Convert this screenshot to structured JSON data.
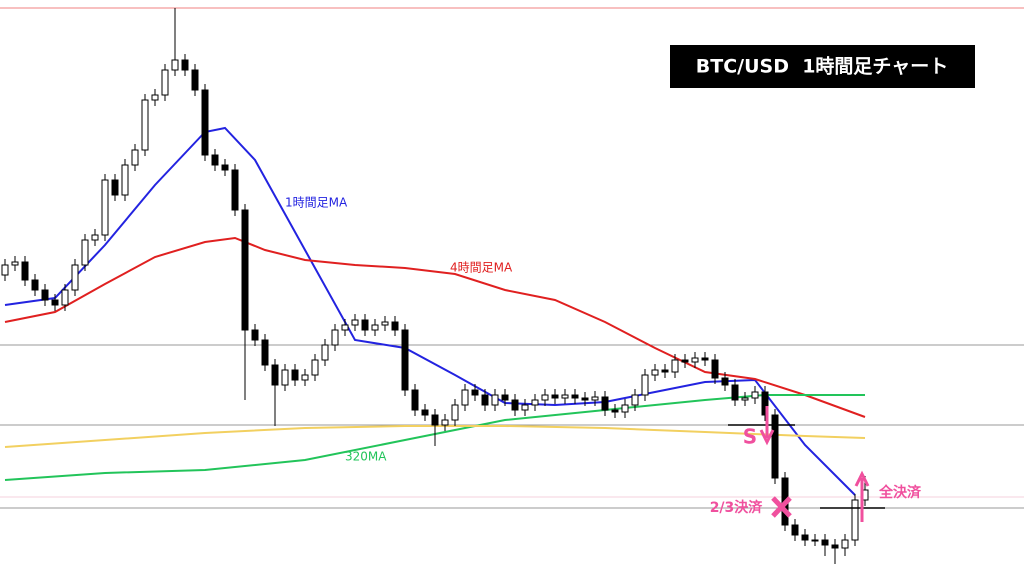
{
  "chart_data": {
    "type": "candlestick",
    "title": "BTC/USD  1時間足チャート",
    "ylim": [
      0,
      576
    ],
    "open": [
      301,
      311,
      314,
      296,
      286,
      276,
      271,
      286,
      311,
      336,
      341,
      396,
      381,
      411,
      426,
      476,
      481,
      506,
      516,
      506,
      486,
      421,
      411,
      406,
      366,
      246,
      236,
      211,
      191,
      206,
      196,
      201,
      216,
      231,
      246,
      251,
      256,
      246,
      251,
      254,
      246,
      186,
      166,
      161,
      151,
      156,
      171,
      186,
      181,
      171,
      181,
      176,
      166,
      171,
      176,
      181,
      178,
      181,
      178,
      176,
      179,
      166,
      164,
      171,
      181,
      201,
      206,
      204,
      216,
      214,
      218,
      216,
      198,
      191,
      176,
      178,
      184,
      161,
      98,
      51,
      41,
      36,
      36,
      31,
      28,
      36,
      76
    ],
    "high": [
      317,
      320,
      320,
      302,
      292,
      282,
      292,
      317,
      342,
      347,
      402,
      402,
      417,
      432,
      482,
      487,
      512,
      568,
      522,
      512,
      492,
      427,
      417,
      412,
      372,
      252,
      242,
      217,
      212,
      212,
      207,
      222,
      237,
      252,
      257,
      262,
      262,
      257,
      260,
      260,
      252,
      192,
      172,
      167,
      162,
      177,
      192,
      192,
      187,
      187,
      187,
      182,
      177,
      182,
      187,
      187,
      187,
      187,
      184,
      185,
      185,
      172,
      177,
      187,
      207,
      212,
      212,
      222,
      222,
      224,
      224,
      222,
      204,
      197,
      184,
      190,
      190,
      167,
      104,
      57,
      47,
      42,
      42,
      37,
      42,
      82,
      100
    ],
    "low": [
      295,
      305,
      290,
      280,
      270,
      265,
      265,
      280,
      305,
      330,
      335,
      375,
      375,
      405,
      420,
      470,
      475,
      500,
      500,
      480,
      415,
      405,
      400,
      360,
      176,
      230,
      205,
      150,
      185,
      190,
      190,
      195,
      210,
      225,
      240,
      245,
      240,
      240,
      245,
      240,
      180,
      160,
      155,
      130,
      145,
      150,
      165,
      175,
      165,
      165,
      170,
      160,
      160,
      165,
      170,
      172,
      172,
      172,
      170,
      170,
      160,
      158,
      158,
      165,
      175,
      195,
      198,
      198,
      208,
      208,
      210,
      192,
      185,
      170,
      170,
      172,
      155,
      92,
      45,
      35,
      30,
      30,
      20,
      12,
      20,
      30,
      70
    ],
    "close": [
      311,
      314,
      296,
      286,
      276,
      271,
      286,
      311,
      336,
      341,
      396,
      381,
      411,
      426,
      476,
      481,
      506,
      516,
      506,
      486,
      421,
      411,
      406,
      366,
      246,
      236,
      211,
      191,
      206,
      196,
      201,
      216,
      231,
      246,
      251,
      256,
      246,
      251,
      254,
      246,
      186,
      166,
      161,
      151,
      156,
      171,
      186,
      181,
      171,
      181,
      176,
      166,
      171,
      176,
      181,
      178,
      181,
      178,
      176,
      179,
      166,
      164,
      171,
      181,
      201,
      206,
      204,
      216,
      214,
      218,
      216,
      198,
      191,
      176,
      178,
      184,
      161,
      98,
      51,
      41,
      36,
      36,
      31,
      28,
      36,
      76,
      86
    ],
    "lines": [
      {
        "name": "1時間足MA",
        "color": "#2323e0",
        "x": [
          0,
          5,
          10,
          15,
          20,
          22,
          25,
          30,
          35,
          40,
          45,
          50,
          55,
          60,
          65,
          70,
          75,
          80,
          85
        ],
        "values": [
          271,
          278,
          331,
          391,
          444,
          448,
          416,
          326,
          236,
          228,
          201,
          173,
          171,
          174,
          184,
          194,
          196,
          131,
          81
        ]
      },
      {
        "name": "4時間足MA",
        "color": "#e02020",
        "x": [
          0,
          5,
          10,
          15,
          20,
          23,
          26,
          30,
          35,
          40,
          45,
          50,
          55,
          60,
          65,
          70,
          75,
          80,
          86
        ],
        "values": [
          254,
          264,
          292,
          319,
          334,
          338,
          326,
          316,
          311,
          308,
          302,
          286,
          276,
          254,
          228,
          204,
          197,
          181,
          159
        ]
      },
      {
        "name": "320MA",
        "color": "#22c45a",
        "x": [
          0,
          10,
          20,
          30,
          40,
          50,
          60,
          70,
          76,
          86
        ],
        "values": [
          96,
          103,
          106,
          116,
          136,
          156,
          166,
          176,
          181,
          181
        ]
      },
      {
        "color": "#f2d060",
        "x": [
          0,
          10,
          20,
          30,
          40,
          50,
          60,
          70,
          80,
          86
        ],
        "values": [
          129,
          136,
          143,
          148,
          150,
          150,
          148,
          144,
          140,
          138
        ]
      }
    ],
    "levels": [
      {
        "value": 568,
        "color": "#f08080"
      },
      {
        "value": 231,
        "color": "#999999"
      },
      {
        "value": 151,
        "color": "#999999"
      },
      {
        "value": 68,
        "color": "#999999"
      },
      {
        "value": 79,
        "color": "#f6d0dc"
      }
    ],
    "annotations": {
      "sell": "S",
      "partial": "2/3決済",
      "full": "全決済"
    }
  }
}
